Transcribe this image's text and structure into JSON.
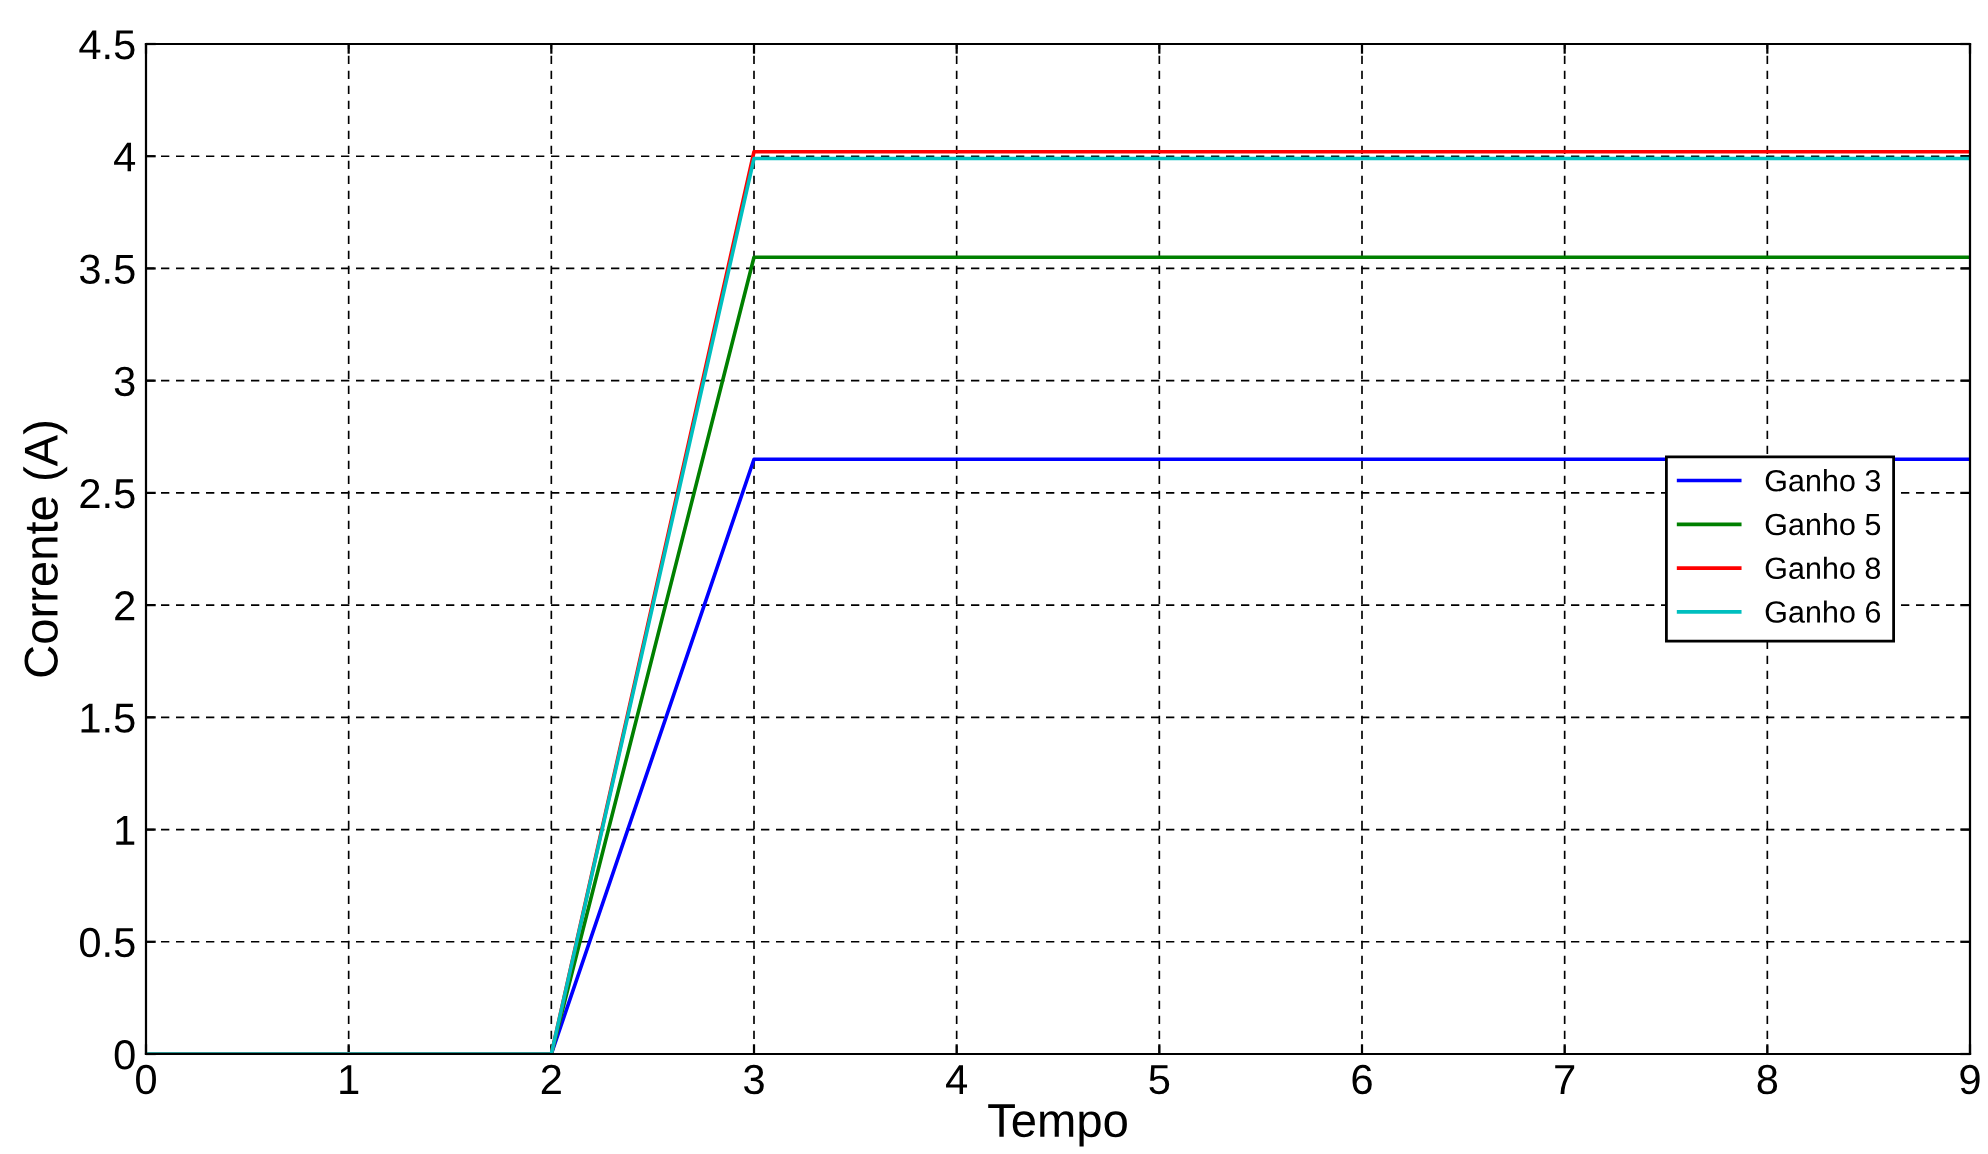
{
  "chart_data": {
    "type": "line",
    "xlabel": "Tempo",
    "ylabel": "Corrente (A)",
    "x": [
      0,
      2,
      3,
      9
    ],
    "series": [
      {
        "name": "Ganho 3",
        "color": "#0000ff",
        "values": [
          0,
          0,
          2.65,
          2.65
        ]
      },
      {
        "name": "Ganho 5",
        "color": "#008000",
        "values": [
          0,
          0,
          3.55,
          3.55
        ]
      },
      {
        "name": "Ganho 8",
        "color": "#ff0000",
        "values": [
          0,
          0,
          4.02,
          4.02
        ]
      },
      {
        "name": "Ganho 6",
        "color": "#00bfbf",
        "values": [
          0,
          0,
          3.99,
          3.99
        ]
      }
    ],
    "xlim": [
      0,
      9
    ],
    "xticks": [
      0,
      1,
      2,
      3,
      4,
      5,
      6,
      7,
      8,
      9
    ],
    "ylim": [
      0,
      4.5
    ],
    "yticks": [
      0,
      0.5,
      1,
      1.5,
      2,
      2.5,
      3,
      3.5,
      4,
      4.5
    ],
    "grid": true,
    "legend": "center right",
    "line_style": "solid",
    "marker": "none"
  }
}
